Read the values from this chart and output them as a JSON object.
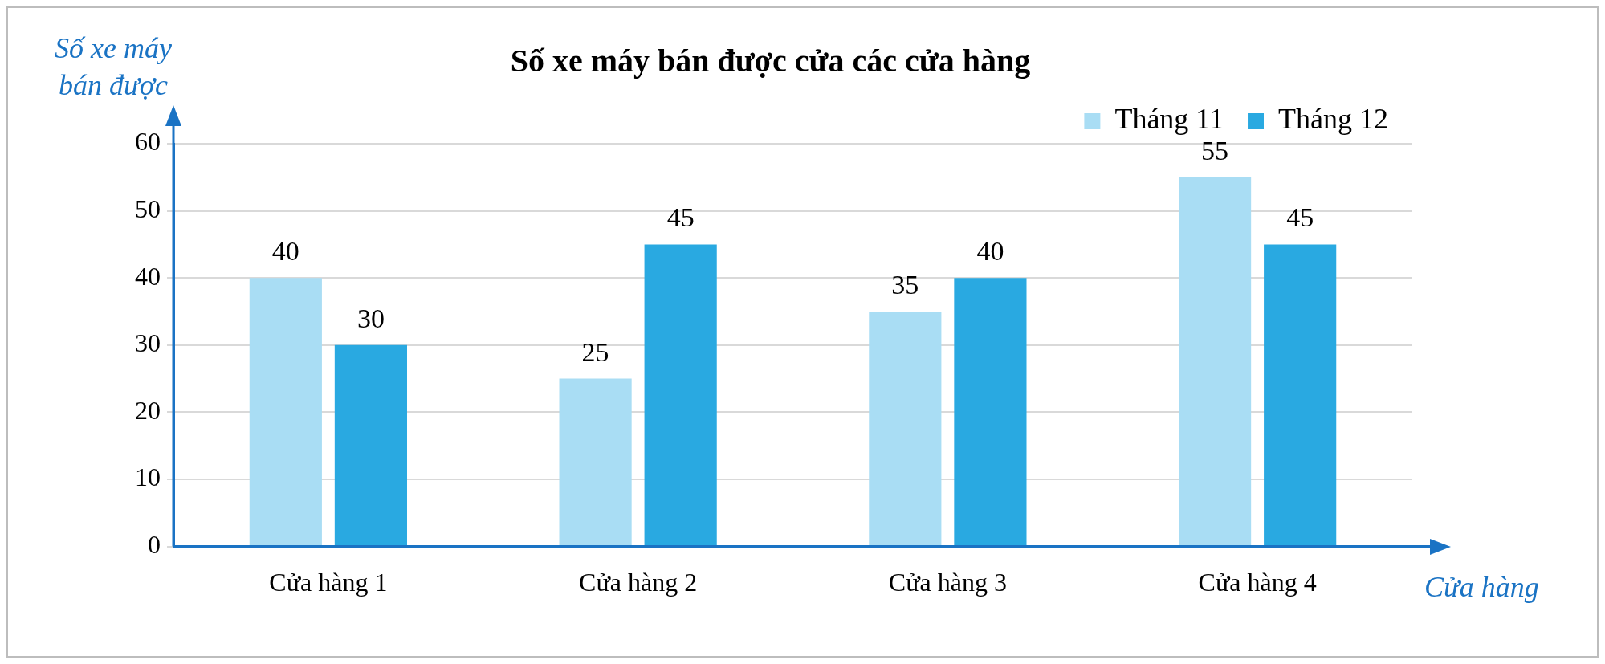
{
  "chart_data": {
    "type": "bar",
    "title": "Số xe máy bán được cửa các cửa hàng",
    "xlabel": "Cửa hàng",
    "ylabel": "Số xe máy bán được",
    "categories": [
      "Cửa hàng 1",
      "Cửa hàng 2",
      "Cửa hàng 3",
      "Cửa hàng 4"
    ],
    "series": [
      {
        "name": "Tháng 11",
        "color": "#a9ddf4",
        "values": [
          40,
          25,
          35,
          55
        ]
      },
      {
        "name": "Tháng 12",
        "color": "#29a9e1",
        "values": [
          30,
          45,
          40,
          45
        ]
      }
    ],
    "ylim": [
      0,
      60
    ],
    "yticks": [
      0,
      10,
      20,
      30,
      40,
      50,
      60
    ],
    "grid": "y",
    "legend": "top right",
    "data_labels": true
  }
}
